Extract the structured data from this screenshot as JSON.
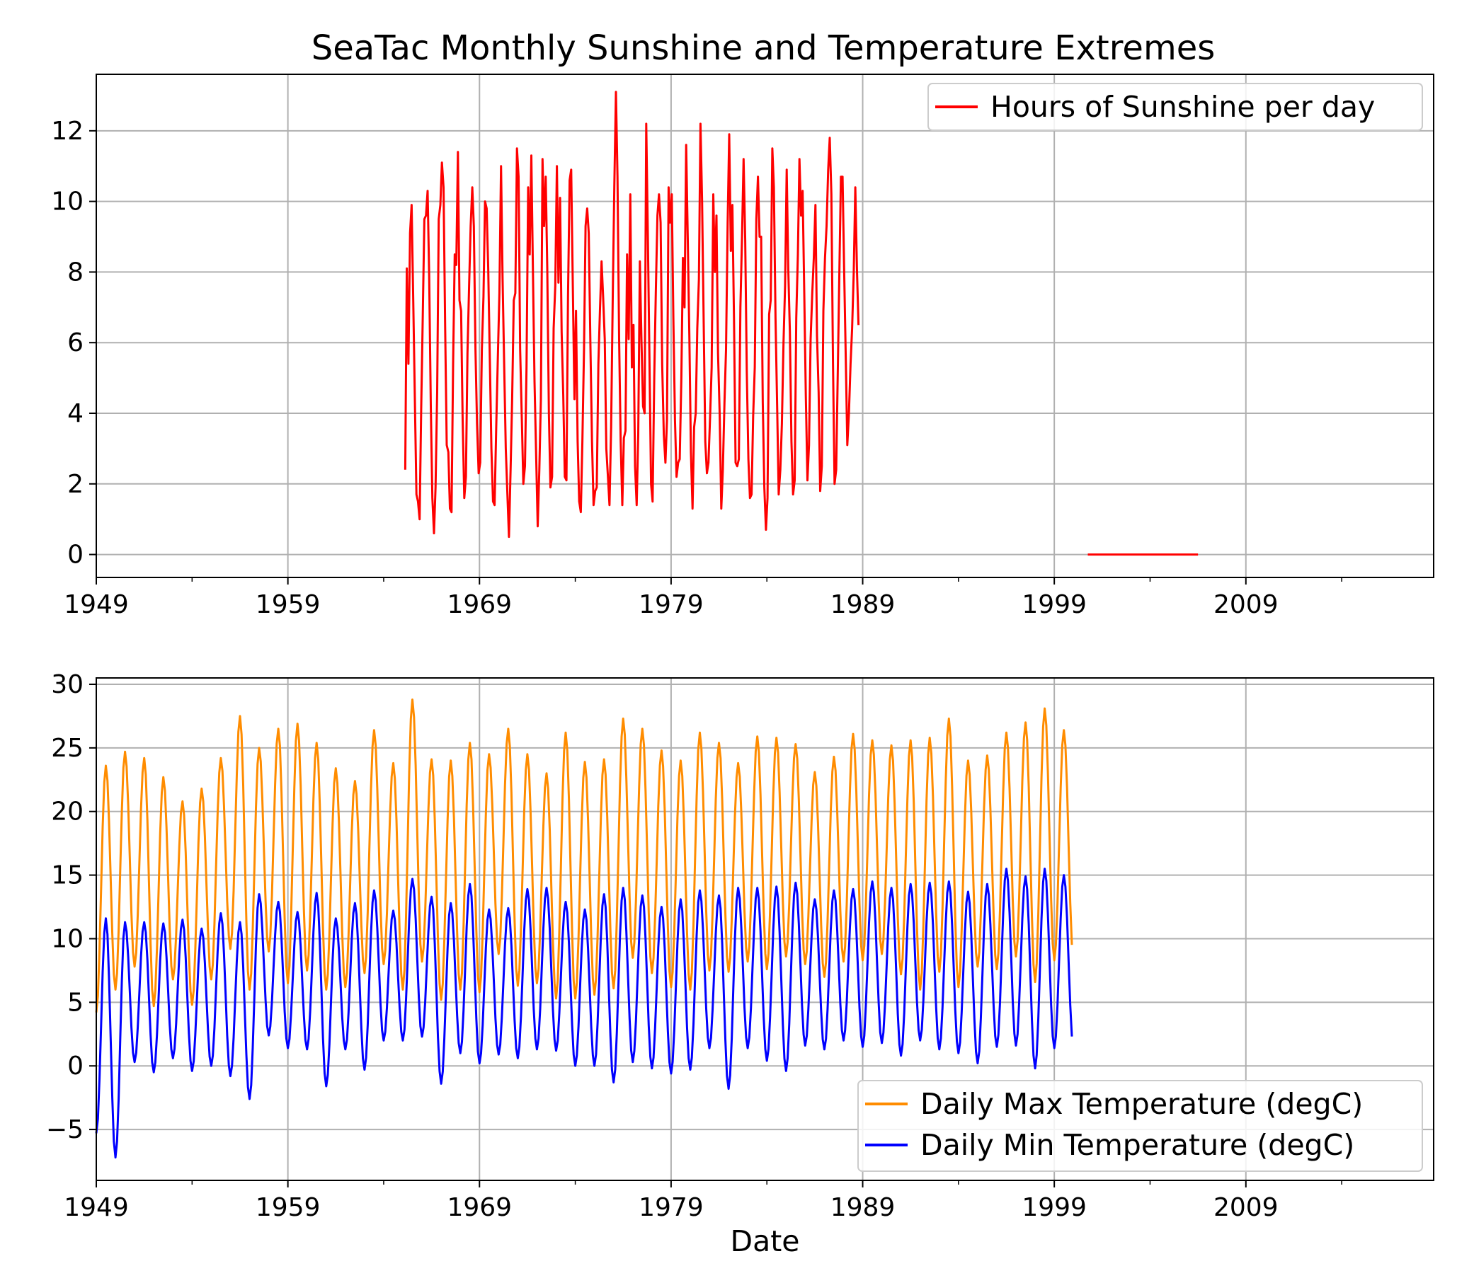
{
  "title": "SeaTac Monthly Sunshine and Temperature Extremes",
  "chart_data": [
    {
      "type": "line",
      "xlabel": "",
      "ylabel": "",
      "xlim": [
        1949,
        2018.8
      ],
      "ylim": [
        -0.65,
        13.6
      ],
      "x_ticks": [
        "1949",
        "1959",
        "1969",
        "1979",
        "1989",
        "1999",
        "2009"
      ],
      "y_ticks": [
        0,
        2,
        4,
        6,
        8,
        10,
        12
      ],
      "grid": true,
      "legend_position": "upper right",
      "series": [
        {
          "name": "Hours of Sunshine per day",
          "color": "#ff0000",
          "x_start": 1965.125,
          "x_step": 0.0833,
          "values": [
            2.4,
            8.1,
            5.4,
            9.1,
            9.9,
            7.2,
            4.5,
            1.7,
            1.5,
            1.0,
            4.1,
            6.8,
            9.5,
            9.6,
            10.3,
            7.9,
            4.2,
            1.6,
            0.6,
            1.9,
            4.6,
            9.5,
            9.9,
            11.1,
            10.4,
            6.4,
            3.1,
            2.9,
            1.3,
            1.2,
            5.4,
            8.5,
            8.2,
            11.4,
            7.2,
            6.9,
            3.8,
            1.6,
            2.2,
            5.7,
            7.6,
            9.3,
            10.4,
            9.3,
            5.8,
            3.7,
            2.3,
            2.6,
            5.8,
            7.3,
            10.0,
            9.8,
            8.1,
            5.5,
            3.0,
            1.5,
            1.4,
            3.6,
            5.5,
            7.4,
            11.0,
            7.8,
            5.3,
            3.0,
            1.7,
            0.5,
            2.4,
            4.4,
            7.2,
            7.4,
            11.5,
            10.7,
            5.8,
            3.9,
            2.0,
            2.5,
            5.3,
            10.4,
            8.5,
            11.3,
            8.1,
            4.9,
            2.9,
            0.8,
            2.4,
            4.4,
            11.2,
            9.3,
            10.7,
            8.1,
            4.0,
            1.9,
            2.2,
            6.4,
            7.6,
            11.0,
            7.7,
            10.1,
            6.3,
            4.5,
            2.2,
            2.1,
            7.3,
            10.6,
            10.9,
            7.6,
            4.4,
            6.9,
            3.2,
            1.5,
            1.2,
            3.2,
            5.8,
            9.3,
            9.8,
            9.1,
            6.0,
            3.2,
            1.4,
            1.8,
            1.9,
            5.4,
            6.9,
            8.3,
            7.3,
            6.1,
            3.0,
            2.2,
            1.4,
            3.6,
            7.3,
            10.4,
            13.1,
            10.7,
            6.1,
            3.2,
            1.4,
            3.3,
            3.5,
            8.5,
            6.1,
            10.2,
            5.3,
            6.5,
            2.5,
            1.4,
            3.4,
            8.3,
            6.1,
            4.2,
            4.0,
            12.2,
            9.0,
            5.6,
            2.0,
            1.5,
            5.0,
            7.4,
            9.6,
            10.2,
            9.4,
            5.4,
            3.4,
            2.6,
            3.8,
            10.4,
            9.4,
            10.2,
            6.7,
            3.8,
            2.2,
            2.6,
            2.7,
            5.0,
            8.4,
            7.0,
            11.6,
            9.0,
            6.2,
            2.9,
            1.3,
            3.6,
            4.0,
            6.4,
            7.8,
            12.2,
            10.0,
            6.5,
            3.2,
            2.3,
            2.6,
            3.9,
            5.3,
            10.2,
            8.0,
            9.6,
            5.7,
            4.0,
            1.3,
            2.4,
            4.3,
            5.8,
            9.4,
            11.9,
            8.6,
            9.9,
            6.6,
            2.6,
            2.5,
            2.7,
            7.0,
            9.0,
            11.2,
            8.9,
            5.2,
            2.7,
            1.6,
            1.7,
            3.9,
            5.3,
            9.5,
            10.7,
            9.0,
            9.0,
            4.3,
            1.9,
            0.7,
            1.6,
            6.8,
            7.2,
            11.5,
            10.4,
            6.7,
            4.2,
            1.7,
            2.4,
            3.7,
            6.0,
            7.6,
            10.9,
            8.1,
            6.3,
            3.2,
            1.7,
            2.1,
            6.7,
            8.5,
            11.2,
            9.6,
            10.3,
            7.4,
            4.5,
            2.1,
            3.1,
            6.1,
            7.4,
            8.4,
            9.9,
            6.2,
            4.6,
            1.8,
            2.5,
            6.9,
            8.4,
            9.3,
            10.9,
            11.8,
            10.2,
            5.4,
            2.0,
            2.4,
            5.1,
            8.0,
            10.7,
            10.7,
            8.1,
            5.6,
            3.1,
            4.0,
            5.4,
            6.4,
            8.0,
            10.4,
            8.1,
            6.5
          ],
          "extra_segment": {
            "x": [
              2000.75,
              2006.5
            ],
            "y": [
              0,
              0
            ]
          }
        }
      ]
    },
    {
      "type": "line",
      "xlabel": "Date",
      "ylabel": "",
      "xlim": [
        1949,
        2018.8
      ],
      "ylim": [
        -9,
        30.5
      ],
      "x_ticks": [
        "1949",
        "1959",
        "1969",
        "1979",
        "1989",
        "1999",
        "2009"
      ],
      "y_ticks": [
        -5,
        0,
        5,
        10,
        15,
        20,
        25,
        30
      ],
      "y_tick_labels": [
        "−5",
        "0",
        "5",
        "10",
        "15",
        "20",
        "25",
        "30"
      ],
      "grid": true,
      "legend_position": "lower right",
      "series": [
        {
          "name": "Daily Max Temperature (degC)",
          "color": "#ff8c00",
          "yearly_peaks": [
            23.6,
            24.7,
            24.2,
            22.7,
            20.8,
            21.8,
            24.2,
            27.5,
            25.0,
            26.5,
            26.9,
            25.4,
            23.4,
            22.4,
            26.4,
            23.8,
            28.8,
            24.1,
            24.0,
            25.4,
            24.5,
            26.5,
            24.5,
            23.0,
            26.2,
            23.9,
            24.1,
            27.3,
            26.5,
            24.8,
            24.0,
            26.2,
            25.4,
            23.8,
            25.9,
            25.8,
            25.3,
            23.1,
            24.3,
            26.1,
            25.6,
            25.2,
            25.6,
            25.8,
            27.3,
            24.0,
            24.4,
            26.2,
            27.0,
            28.1,
            26.4
          ],
          "winter_lows": [
            4.2,
            6.0,
            7.8,
            4.7,
            6.8,
            4.8,
            6.8,
            9.2,
            6.0,
            9.0,
            6.5,
            7.5,
            6.0,
            6.2,
            7.3,
            8.0,
            6.0,
            8.2,
            5.2,
            6.0,
            5.8,
            8.8,
            6.3,
            6.5,
            5.3,
            5.3,
            5.6,
            6.1,
            8.5,
            7.3,
            6.2,
            6.0,
            7.5,
            7.4,
            8.2,
            7.6,
            8.6,
            8.0,
            7.0,
            8.2,
            8.3,
            8.8,
            7.2,
            6.0,
            7.4,
            6.2,
            7.8,
            7.6,
            8.6,
            6.6,
            8.3
          ]
        },
        {
          "name": "Daily Min Temperature (degC)",
          "color": "#0000ff",
          "yearly_peaks": [
            11.6,
            11.3,
            11.3,
            11.2,
            11.5,
            10.8,
            12.0,
            11.3,
            13.5,
            12.9,
            12.1,
            13.6,
            11.6,
            12.8,
            13.8,
            12.2,
            14.7,
            13.3,
            12.8,
            14.3,
            12.3,
            12.4,
            13.9,
            14.0,
            12.9,
            12.3,
            13.5,
            14.0,
            13.4,
            12.5,
            13.1,
            13.8,
            13.4,
            14.0,
            14.0,
            14.1,
            14.4,
            13.1,
            13.8,
            13.9,
            14.5,
            14.0,
            14.3,
            14.4,
            14.5,
            13.7,
            14.3,
            15.5,
            14.9,
            15.5,
            15.0
          ],
          "winter_lows": [
            -5.3,
            -7.2,
            0.3,
            -0.5,
            0.6,
            -0.4,
            0.0,
            -0.8,
            -2.6,
            2.4,
            1.4,
            1.3,
            -1.6,
            1.3,
            -0.3,
            2.0,
            2.0,
            2.3,
            -1.4,
            1.0,
            0.2,
            0.9,
            0.6,
            1.3,
            1.2,
            0.0,
            0.0,
            -1.3,
            0.3,
            -0.2,
            -0.6,
            -0.3,
            1.4,
            -1.8,
            1.4,
            0.4,
            -0.4,
            1.6,
            1.3,
            2.0,
            1.5,
            1.8,
            0.8,
            2.0,
            1.3,
            1.0,
            0.2,
            1.5,
            1.6,
            -0.2,
            1.4
          ]
        }
      ]
    }
  ]
}
